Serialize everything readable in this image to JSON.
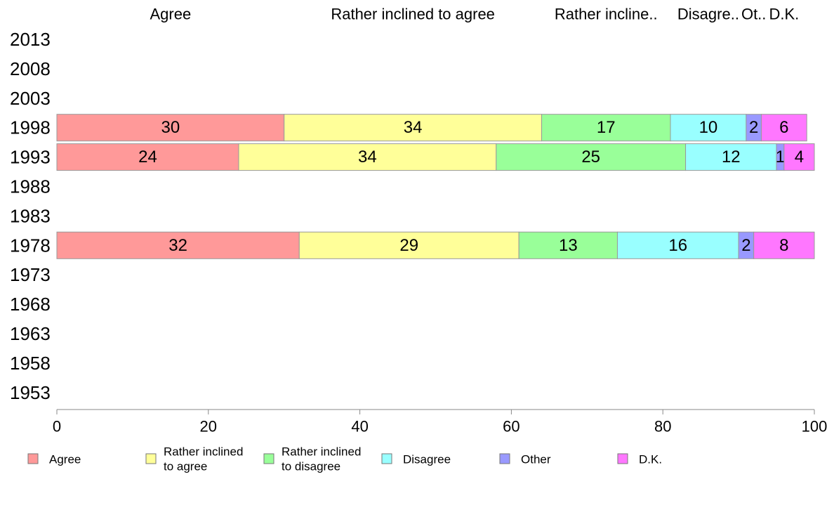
{
  "chart_data": {
    "type": "bar",
    "orientation": "horizontal",
    "stacked": true,
    "categories": [
      "2013",
      "2008",
      "2003",
      "1998",
      "1993",
      "1988",
      "1983",
      "1978",
      "1973",
      "1968",
      "1963",
      "1958",
      "1953"
    ],
    "series": [
      {
        "name": "Agree",
        "color": "#ff9999",
        "values": [
          null,
          null,
          null,
          30,
          24,
          null,
          null,
          32,
          null,
          null,
          null,
          null,
          null
        ]
      },
      {
        "name": "Rather inclined to agree",
        "color": "#ffff99",
        "values": [
          null,
          null,
          null,
          34,
          34,
          null,
          null,
          29,
          null,
          null,
          null,
          null,
          null
        ]
      },
      {
        "name": "Rather inclined to disagree",
        "color": "#99ff99",
        "values": [
          null,
          null,
          null,
          17,
          25,
          null,
          null,
          13,
          null,
          null,
          null,
          null,
          null
        ]
      },
      {
        "name": "Disagree",
        "color": "#99ffff",
        "values": [
          null,
          null,
          null,
          10,
          12,
          null,
          null,
          16,
          null,
          null,
          null,
          null,
          null
        ]
      },
      {
        "name": "Other",
        "color": "#9999ff",
        "values": [
          null,
          null,
          null,
          2,
          1,
          null,
          null,
          2,
          null,
          null,
          null,
          null,
          null
        ]
      },
      {
        "name": "D.K.",
        "color": "#ff77ff",
        "values": [
          null,
          null,
          null,
          6,
          4,
          null,
          null,
          8,
          null,
          null,
          null,
          null,
          null
        ]
      }
    ],
    "top_labels": [
      "Agree",
      "Rather inclined to agree",
      "Rather incline..",
      "Disagre..",
      "Ot..",
      "D.K."
    ],
    "legend_labels": [
      [
        "Agree"
      ],
      [
        "Rather inclined",
        "to agree"
      ],
      [
        "Rather inclined",
        "to disagree"
      ],
      [
        "Disagree"
      ],
      [
        "Other"
      ],
      [
        "D.K."
      ]
    ],
    "xlim": [
      0,
      100
    ],
    "xticks": [
      0,
      20,
      40,
      60,
      80,
      100
    ],
    "grid": false,
    "legend_position": "bottom"
  }
}
